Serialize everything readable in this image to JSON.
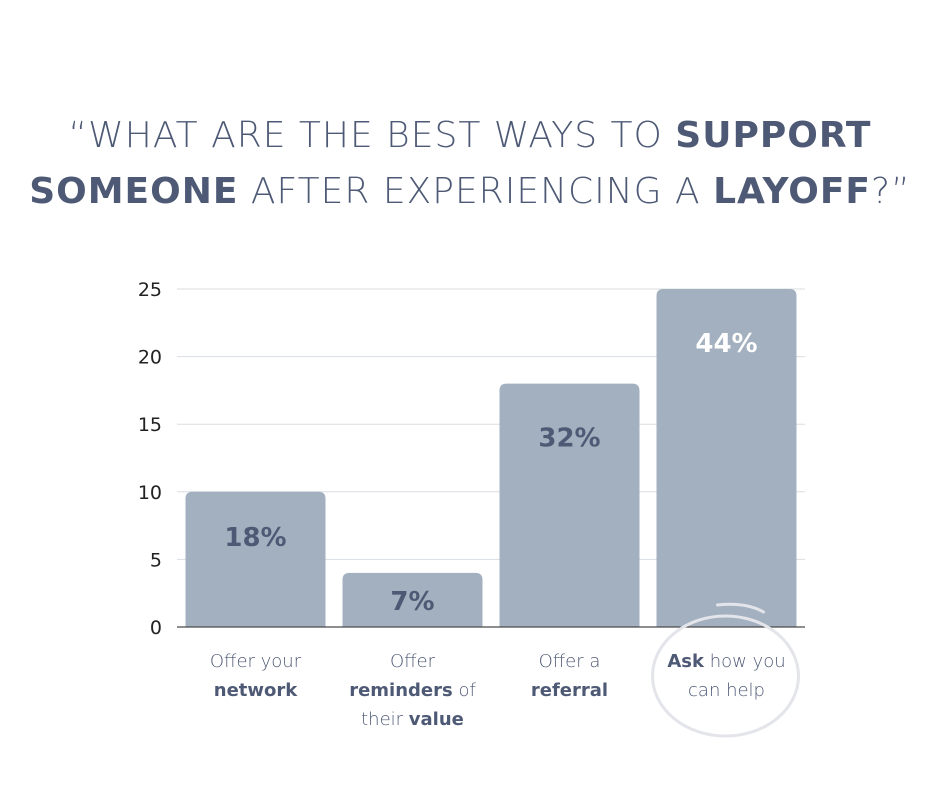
{
  "title": {
    "line1": [
      "“WHAT ARE THE BEST WAYS TO ",
      "SUPPORT"
    ],
    "line2": [
      "SOMEONE",
      " AFTER EXPERIENCING A ",
      "LAYOFF",
      "?”"
    ]
  },
  "colors": {
    "bar": "#a3b0bf",
    "text": "#4e5a75",
    "grid": "#d9dde2",
    "axis": "#4a4a4a"
  },
  "chart_data": {
    "type": "bar",
    "categories": [
      "Offer your network",
      "Offer reminders of their value",
      "Offer a referral",
      "Ask how you can help"
    ],
    "values": [
      10,
      4,
      18,
      25
    ],
    "data_labels": [
      "18%",
      "7%",
      "32%",
      "44%"
    ],
    "ylim": [
      0,
      25
    ],
    "yticks": [
      "0",
      "5",
      "10",
      "15",
      "20",
      "25"
    ],
    "grid": true,
    "highlight": "Ask how you can help"
  },
  "category_labels": [
    [
      [
        "Offer your",
        false
      ],
      [
        "\n",
        false
      ],
      [
        "network",
        true
      ]
    ],
    [
      [
        "Offer",
        false
      ],
      [
        "\n",
        false
      ],
      [
        "reminders",
        true
      ],
      [
        " of",
        false
      ],
      [
        "\n",
        false
      ],
      [
        "their ",
        false
      ],
      [
        "value",
        true
      ]
    ],
    [
      [
        "Offer a",
        false
      ],
      [
        "\n",
        false
      ],
      [
        "referral",
        true
      ]
    ],
    [
      [
        "Ask",
        true
      ],
      [
        " how you",
        false
      ],
      [
        "\n",
        false
      ],
      [
        "can help",
        false
      ]
    ]
  ]
}
